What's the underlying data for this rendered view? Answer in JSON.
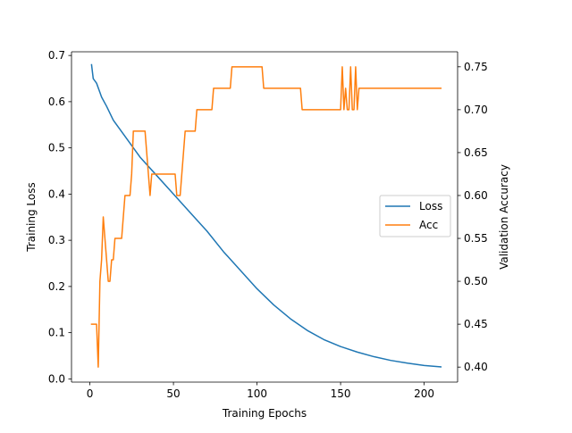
{
  "chart_data": {
    "type": "line",
    "xlabel": "Training Epochs",
    "ylabel_left": "Training Loss",
    "ylabel_right": "Validation Accuracy",
    "xlim": [
      -11,
      220
    ],
    "ylim_left": [
      -0.007,
      0.708
    ],
    "ylim_right": [
      0.3825,
      0.7675
    ],
    "x_ticks": [
      0,
      50,
      100,
      150,
      200
    ],
    "y_ticks_left": [
      0.0,
      0.1,
      0.2,
      0.3,
      0.4,
      0.5,
      0.6,
      0.7
    ],
    "y_ticks_right": [
      0.4,
      0.45,
      0.5,
      0.55,
      0.6,
      0.65,
      0.7,
      0.75
    ],
    "grid": false,
    "legend_position": "center-right",
    "series": [
      {
        "name": "Loss",
        "axis": "left",
        "color": "#1f77b4",
        "points": [
          [
            1,
            0.68
          ],
          [
            2,
            0.65
          ],
          [
            4,
            0.64
          ],
          [
            6,
            0.62
          ],
          [
            7,
            0.61
          ],
          [
            10,
            0.59
          ],
          [
            14,
            0.56
          ],
          [
            20,
            0.53
          ],
          [
            30,
            0.48
          ],
          [
            40,
            0.44
          ],
          [
            50,
            0.4
          ],
          [
            60,
            0.36
          ],
          [
            70,
            0.32
          ],
          [
            80,
            0.275
          ],
          [
            90,
            0.235
          ],
          [
            100,
            0.195
          ],
          [
            110,
            0.16
          ],
          [
            120,
            0.13
          ],
          [
            130,
            0.105
          ],
          [
            140,
            0.085
          ],
          [
            150,
            0.07
          ],
          [
            160,
            0.058
          ],
          [
            170,
            0.048
          ],
          [
            180,
            0.04
          ],
          [
            190,
            0.034
          ],
          [
            200,
            0.029
          ],
          [
            210,
            0.026
          ]
        ]
      },
      {
        "name": "Acc",
        "axis": "right",
        "color": "#ff7f0e",
        "points": [
          [
            1,
            0.45
          ],
          [
            4,
            0.45
          ],
          [
            5,
            0.4
          ],
          [
            6,
            0.5
          ],
          [
            7,
            0.525
          ],
          [
            8,
            0.575
          ],
          [
            9,
            0.55
          ],
          [
            11,
            0.5
          ],
          [
            12,
            0.5
          ],
          [
            13,
            0.525
          ],
          [
            14,
            0.525
          ],
          [
            15,
            0.55
          ],
          [
            18,
            0.55
          ],
          [
            19,
            0.55
          ],
          [
            21,
            0.6
          ],
          [
            24,
            0.6
          ],
          [
            25,
            0.625
          ],
          [
            26,
            0.675
          ],
          [
            33,
            0.675
          ],
          [
            34,
            0.65
          ],
          [
            36,
            0.6
          ],
          [
            37,
            0.625
          ],
          [
            51,
            0.625
          ],
          [
            52,
            0.6
          ],
          [
            54,
            0.6
          ],
          [
            56,
            0.65
          ],
          [
            57,
            0.675
          ],
          [
            63,
            0.675
          ],
          [
            64,
            0.7
          ],
          [
            73,
            0.7
          ],
          [
            74,
            0.725
          ],
          [
            84,
            0.725
          ],
          [
            85,
            0.75
          ],
          [
            103,
            0.75
          ],
          [
            104,
            0.725
          ],
          [
            126,
            0.725
          ],
          [
            127,
            0.7
          ],
          [
            150,
            0.7
          ],
          [
            151,
            0.75
          ],
          [
            152,
            0.7
          ],
          [
            153,
            0.725
          ],
          [
            154,
            0.7
          ],
          [
            155,
            0.7
          ],
          [
            156,
            0.75
          ],
          [
            157,
            0.7
          ],
          [
            158,
            0.7
          ],
          [
            159,
            0.75
          ],
          [
            160,
            0.7
          ],
          [
            161,
            0.725
          ],
          [
            210,
            0.725
          ]
        ]
      }
    ]
  }
}
